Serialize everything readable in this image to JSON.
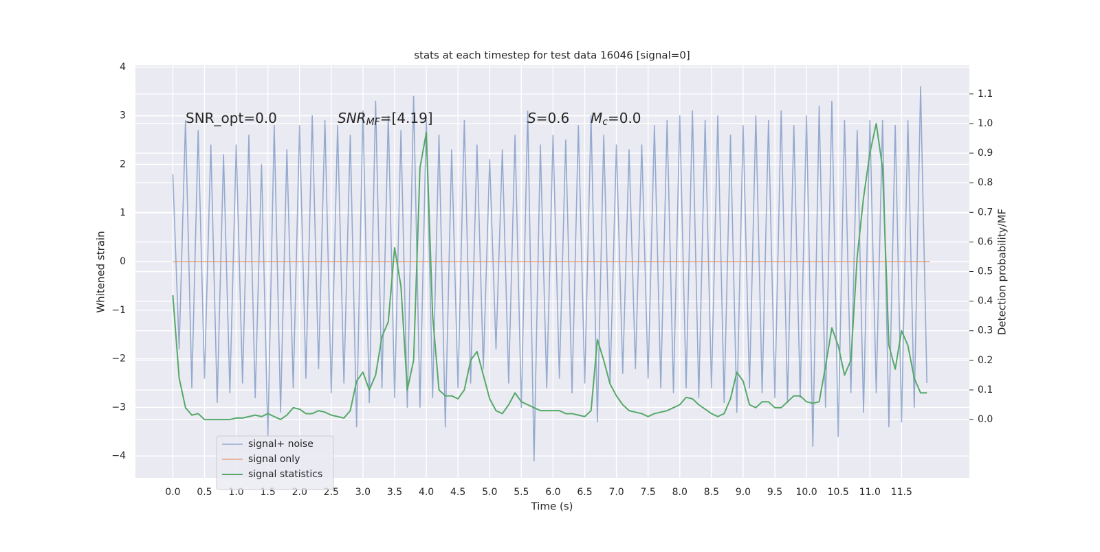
{
  "chart_data": {
    "type": "line",
    "title": "stats at each timestep for test data 16046 [signal=0]",
    "xlabel": "Time (s)",
    "ylabel": "Whitened strain",
    "y2label": "Detection probability/MF",
    "x": [
      0,
      0.1,
      0.2,
      0.3,
      0.4,
      0.5,
      0.6,
      0.7,
      0.8,
      0.9,
      1,
      1.1,
      1.2,
      1.3,
      1.4,
      1.5,
      1.6,
      1.7,
      1.8,
      1.9,
      2,
      2.1,
      2.2,
      2.3,
      2.4,
      2.5,
      2.6,
      2.7,
      2.8,
      2.9,
      3,
      3.1,
      3.2,
      3.3,
      3.4,
      3.5,
      3.6,
      3.7,
      3.8,
      3.9,
      4,
      4.1,
      4.2,
      4.3,
      4.4,
      4.5,
      4.6,
      4.7,
      4.8,
      4.9,
      5,
      5.1,
      5.2,
      5.3,
      5.4,
      5.5,
      5.6,
      5.7,
      5.8,
      5.9,
      6,
      6.1,
      6.2,
      6.3,
      6.4,
      6.5,
      6.6,
      6.7,
      6.8,
      6.9,
      7,
      7.1,
      7.2,
      7.3,
      7.4,
      7.5,
      7.6,
      7.7,
      7.8,
      7.9,
      8,
      8.1,
      8.2,
      8.3,
      8.4,
      8.5,
      8.6,
      8.7,
      8.8,
      8.9,
      9,
      9.1,
      9.2,
      9.3,
      9.4,
      9.5,
      9.6,
      9.7,
      9.8,
      9.9,
      10,
      10.1,
      10.2,
      10.3,
      10.4,
      10.5,
      10.6,
      10.7,
      10.8,
      10.9,
      11,
      11.1,
      11.2,
      11.3,
      11.4,
      11.5,
      11.6,
      11.7,
      11.8,
      11.9
    ],
    "series": [
      {
        "name": "signal+ noise",
        "color": "#4c72b0",
        "values": [
          1.8,
          -1.8,
          2.9,
          -2.6,
          2.7,
          -2.4,
          2.4,
          -2.9,
          2.2,
          -2.7,
          2.4,
          -2.5,
          2.6,
          -2.8,
          2.0,
          -3.6,
          2.8,
          -3.1,
          2.3,
          -2.6,
          2.8,
          -2.4,
          3.0,
          -2.2,
          2.9,
          -2.7,
          2.8,
          -2.5,
          2.6,
          -3.4,
          3.1,
          -2.9,
          3.3,
          -2.6,
          3.0,
          -2.8,
          2.7,
          -3.0,
          3.4,
          -3.0,
          2.9,
          -2.8,
          2.6,
          -3.4,
          2.3,
          -2.6,
          2.9,
          -2.5,
          2.4,
          -2.2,
          2.1,
          -1.8,
          2.3,
          -2.5,
          2.6,
          -3.0,
          3.1,
          -4.1,
          2.4,
          -2.6,
          2.6,
          -2.4,
          2.5,
          -2.7,
          2.8,
          -2.5,
          3.0,
          -3.3,
          2.6,
          -2.5,
          2.4,
          -2.3,
          2.3,
          -2.2,
          2.4,
          -2.4,
          2.8,
          -2.6,
          2.9,
          -2.7,
          3.0,
          -2.6,
          3.1,
          -2.8,
          2.9,
          -2.6,
          3.0,
          -2.9,
          2.6,
          -3.1,
          2.8,
          -2.6,
          3.0,
          -2.7,
          2.9,
          -2.8,
          3.1,
          -2.9,
          2.8,
          -2.8,
          3.0,
          -3.8,
          3.2,
          -3.0,
          3.3,
          -3.6,
          2.9,
          -2.7,
          2.7,
          -3.1,
          2.9,
          -2.7,
          2.9,
          -3.4,
          2.8,
          -3.3,
          2.9,
          -3.0,
          3.6,
          -2.5
        ]
      },
      {
        "name": "signal only",
        "color": "#dd8452",
        "x": [
          0,
          11.95
        ],
        "values": [
          0,
          0
        ]
      },
      {
        "name": "signal statistics",
        "color": "#55a868",
        "axis": "y2",
        "values": [
          0.42,
          0.14,
          0.04,
          0.015,
          0.02,
          0.0,
          0.0,
          0.0,
          0.0,
          0.0,
          0.005,
          0.005,
          0.01,
          0.015,
          0.01,
          0.02,
          0.01,
          0.0,
          0.015,
          0.04,
          0.035,
          0.02,
          0.02,
          0.03,
          0.025,
          0.015,
          0.01,
          0.005,
          0.03,
          0.13,
          0.16,
          0.1,
          0.15,
          0.28,
          0.33,
          0.58,
          0.45,
          0.1,
          0.2,
          0.85,
          0.97,
          0.35,
          0.1,
          0.08,
          0.08,
          0.07,
          0.1,
          0.2,
          0.23,
          0.15,
          0.07,
          0.03,
          0.02,
          0.05,
          0.09,
          0.06,
          0.05,
          0.04,
          0.03,
          0.03,
          0.03,
          0.03,
          0.02,
          0.02,
          0.015,
          0.01,
          0.03,
          0.27,
          0.2,
          0.12,
          0.08,
          0.05,
          0.03,
          0.025,
          0.02,
          0.01,
          0.02,
          0.025,
          0.03,
          0.04,
          0.05,
          0.075,
          0.07,
          0.05,
          0.035,
          0.02,
          0.01,
          0.02,
          0.07,
          0.16,
          0.13,
          0.05,
          0.04,
          0.06,
          0.06,
          0.04,
          0.04,
          0.06,
          0.08,
          0.08,
          0.06,
          0.055,
          0.06,
          0.18,
          0.31,
          0.25,
          0.15,
          0.2,
          0.55,
          0.75,
          0.9,
          1.0,
          0.85,
          0.25,
          0.17,
          0.3,
          0.25,
          0.14,
          0.09,
          0.09
        ]
      }
    ],
    "annotations": [
      {
        "text": "SNR_opt=0.0"
      },
      {
        "text": "SNR",
        "sub": "MF",
        "rest": "=[4.19]",
        "italic": true
      },
      {
        "text": "S",
        "rest": "=0.6",
        "italic": true
      },
      {
        "text": "M",
        "sub": "c",
        "rest": "=0.0",
        "italic": true
      }
    ],
    "xlim": [
      -0.59,
      12.57
    ],
    "xticks": [
      {
        "value": 0,
        "label": "0.0"
      },
      0.5,
      {
        "value": 1,
        "label": "1.0"
      },
      1.5,
      {
        "value": 2,
        "label": "2.0"
      },
      2.5,
      {
        "value": 3,
        "label": "3.0"
      },
      3.5,
      {
        "value": 4,
        "label": "4.0"
      },
      4.5,
      {
        "value": 5,
        "label": "5.0"
      },
      5.5,
      {
        "value": 6,
        "label": "6.0"
      },
      6.5,
      {
        "value": 7,
        "label": "7.0"
      },
      7.5,
      {
        "value": 8,
        "label": "8.0"
      },
      8.5,
      {
        "value": 9,
        "label": "9.0"
      },
      9.5,
      {
        "value": 10,
        "label": "10.0"
      },
      10.5,
      {
        "value": 11,
        "label": "11.0"
      },
      11.5
    ],
    "ylim": [
      -4.45,
      4.04
    ],
    "yticks": [
      {
        "value": -4,
        "label": "−4"
      },
      {
        "value": -3,
        "label": "−3"
      },
      {
        "value": -2,
        "label": "−2"
      },
      {
        "value": -1,
        "label": "−1"
      },
      0,
      1,
      2,
      3,
      4
    ],
    "y2lim": [
      -0.197,
      1.197
    ],
    "y2ticks": [
      {
        "value": 0,
        "label": "0.0"
      },
      0.1,
      0.2,
      0.3,
      0.4,
      0.5,
      0.6,
      0.7,
      0.8,
      0.9,
      {
        "value": 1,
        "label": "1.0"
      },
      1.1
    ],
    "grid": true,
    "legend": "lower left"
  }
}
